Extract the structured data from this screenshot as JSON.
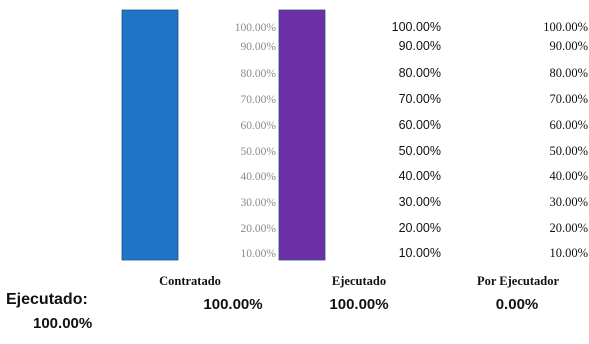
{
  "chart_data": {
    "type": "bar",
    "categories": [
      "Contratado",
      "Ejecutado",
      "Por Ejecutador"
    ],
    "values": [
      100.0,
      100.0,
      0.0
    ],
    "value_labels": [
      "100.00%",
      "100.00%",
      "0.00%"
    ],
    "ylim": [
      0,
      100
    ],
    "tick_labels": [
      "100.00%",
      "90.00%",
      "80.00%",
      "70.00%",
      "60.00%",
      "50.00%",
      "40.00%",
      "30.00%",
      "20.00%",
      "10.00%"
    ],
    "colors": [
      "#1f74c7",
      "#6c2fa6",
      "#ffffff"
    ]
  },
  "summary": {
    "label": "Ejecutado:",
    "value": "100.00%"
  }
}
